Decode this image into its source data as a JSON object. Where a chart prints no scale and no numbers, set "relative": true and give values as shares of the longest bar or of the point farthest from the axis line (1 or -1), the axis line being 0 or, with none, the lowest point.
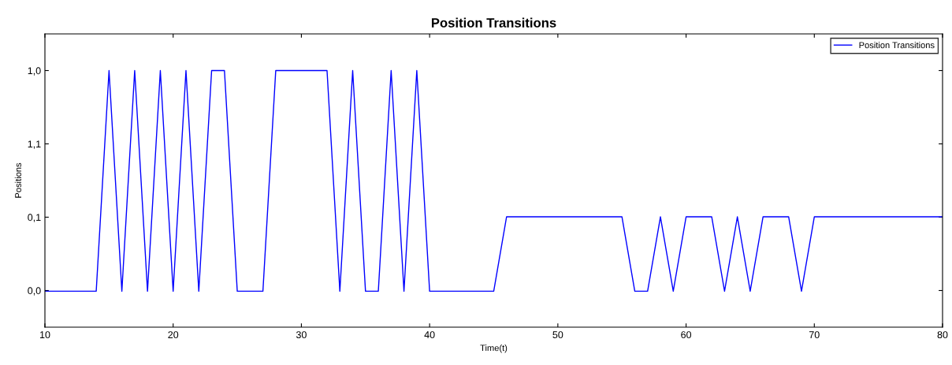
{
  "chart_data": {
    "type": "line",
    "title": "Position Transitions",
    "xlabel": "Time(t)",
    "ylabel": "Positions",
    "relative": true,
    "x": [
      10,
      14,
      15,
      16,
      17,
      18,
      19,
      20,
      21,
      22,
      23,
      24,
      25,
      27,
      28,
      32,
      33,
      34,
      35,
      36,
      37,
      38,
      39,
      40,
      45,
      46,
      55,
      56,
      57,
      58,
      59,
      60,
      62,
      63,
      64,
      65,
      66,
      68,
      69,
      70,
      80
    ],
    "y_categories": [
      "1,0",
      "1,1",
      "0,1",
      "0,0"
    ],
    "series": [
      {
        "name": "Position Transitions",
        "color": "#0000ff",
        "values": [
          0.14,
          0.14,
          1,
          0.14,
          1,
          0.14,
          1,
          0.14,
          1,
          0.14,
          1,
          1,
          0.14,
          0.14,
          1,
          1,
          0.14,
          1,
          0.14,
          0.14,
          1,
          0.14,
          1,
          0.14,
          0.14,
          0.43,
          0.43,
          0.14,
          0.14,
          0.43,
          0.14,
          0.43,
          0.43,
          0.14,
          0.43,
          0.14,
          0.43,
          0.43,
          0.14,
          0.43,
          0.43
        ]
      }
    ],
    "xlim": [
      10,
      80
    ],
    "xticks": [
      10,
      20,
      30,
      40,
      50,
      60,
      70,
      80
    ],
    "grid": false,
    "legend": "top right",
    "marker": "none",
    "line_style": "solid"
  }
}
